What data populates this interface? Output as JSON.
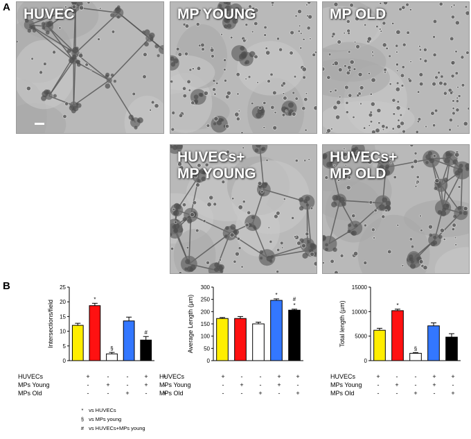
{
  "panels": {
    "a_label": "A",
    "b_label": "B"
  },
  "images": [
    {
      "label": "HUVEC",
      "texture": "network-sparse"
    },
    {
      "label": "MP YOUNG",
      "texture": "clusters"
    },
    {
      "label": "MP OLD",
      "texture": "dots"
    },
    {
      "label": "HUVECs+\nMP YOUNG",
      "texture": "network-dense"
    },
    {
      "label": "HUVECs+\nMP OLD",
      "texture": "network-dense"
    }
  ],
  "colors": {
    "huvec": "#ffee00",
    "mp_young": "#ff1111",
    "mp_old": "#ffffff",
    "huvec_mp_young": "#3377ff",
    "huvec_mp_old": "#000000"
  },
  "chart_data": [
    {
      "type": "bar",
      "ylabel": "Intersections/field",
      "ylim": [
        0,
        25
      ],
      "yticks": [
        0,
        5,
        10,
        15,
        20,
        25
      ],
      "values": [
        12,
        18.7,
        2.3,
        13.5,
        7
      ],
      "errors": [
        0.7,
        0.8,
        0.5,
        1.3,
        1.2
      ],
      "annotations": [
        "",
        "*",
        "§",
        "",
        "#"
      ]
    },
    {
      "type": "bar",
      "ylabel": "Average Length (µm)",
      "ylim": [
        0,
        300
      ],
      "yticks": [
        0,
        50,
        100,
        150,
        200,
        250,
        300
      ],
      "values": [
        172,
        172,
        150,
        246,
        206
      ],
      "errors": [
        4,
        8,
        7,
        6,
        4
      ],
      "annotations": [
        "",
        "",
        "",
        "*",
        "#\n*"
      ]
    },
    {
      "type": "bar",
      "ylabel": "Total length (µm)",
      "ylim": [
        0,
        15000
      ],
      "yticks": [
        0,
        5000,
        10000,
        15000
      ],
      "values": [
        6200,
        10200,
        1500,
        7100,
        4800
      ],
      "errors": [
        400,
        300,
        150,
        600,
        700
      ],
      "annotations": [
        "",
        "*",
        "§",
        "",
        ""
      ]
    }
  ],
  "conditions": {
    "rows": [
      {
        "name": "HUVECs",
        "signs": [
          "+",
          "-",
          "-",
          "+",
          "+"
        ]
      },
      {
        "name": "MPs Young",
        "signs": [
          "-",
          "+",
          "-",
          "+",
          "-"
        ]
      },
      {
        "name": "MPs Old",
        "signs": [
          "-",
          "-",
          "+",
          "-",
          "+"
        ]
      }
    ]
  },
  "legend": [
    {
      "symbol": "*",
      "text": "vs HUVECs"
    },
    {
      "symbol": "§",
      "text": "vs MPs young"
    },
    {
      "symbol": "#",
      "text": "vs HUVECs+MPs young"
    }
  ]
}
